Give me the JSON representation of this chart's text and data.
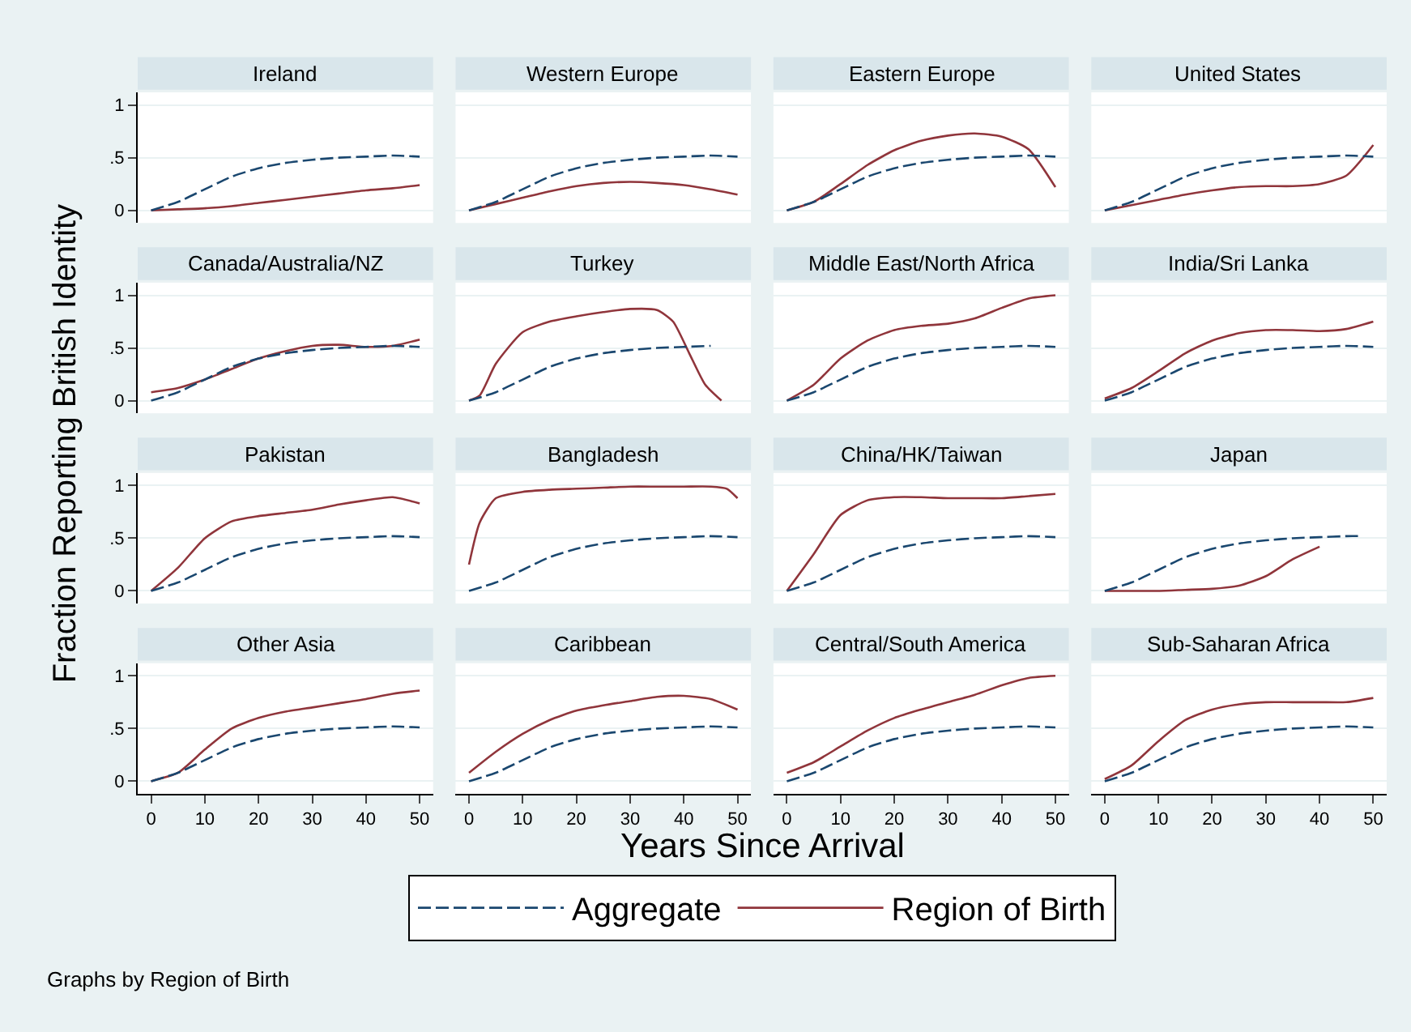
{
  "chart_data": [
    {
      "type": "line",
      "title": "Ireland",
      "xlim": [
        -2.5,
        52.5
      ],
      "xticks": [
        0,
        10,
        20,
        30,
        40,
        50
      ],
      "ylim": [
        -0.12,
        1.12
      ],
      "yticks": [
        {
          "value": 0,
          "label": "0"
        },
        {
          "value": 0.5,
          "label": ".5"
        },
        {
          "value": 1,
          "label": "1"
        }
      ],
      "grid": "y",
      "tick_labels": "y",
      "legend": "bottom",
      "ylabel": "Fraction Reporting British Identity",
      "series": [
        {
          "name": "Aggregate",
          "color": "#1a476f",
          "line_style": "dashed",
          "x": [
            0,
            5,
            10,
            15,
            20,
            25,
            30,
            35,
            40,
            45,
            50
          ],
          "values": [
            0,
            0.08,
            0.2,
            0.32,
            0.4,
            0.45,
            0.48,
            0.5,
            0.51,
            0.52,
            0.51
          ]
        },
        {
          "name": "Region of Birth",
          "color": "#90353b",
          "line_style": "solid",
          "x": [
            0,
            5,
            10,
            15,
            20,
            25,
            30,
            35,
            40,
            45,
            50
          ],
          "values": [
            0,
            0.01,
            0.02,
            0.04,
            0.07,
            0.1,
            0.13,
            0.16,
            0.19,
            0.21,
            0.24
          ]
        }
      ]
    },
    {
      "type": "line",
      "title": "Western Europe",
      "xlim": [
        -2.5,
        52.5
      ],
      "xticks": [
        0,
        10,
        20,
        30,
        40,
        50
      ],
      "ylim": [
        -0.12,
        1.12
      ],
      "yticks": [
        {
          "value": 0,
          "label": null
        },
        {
          "value": 0.5,
          "label": null
        },
        {
          "value": 1,
          "label": null
        }
      ],
      "grid": "y",
      "tick_labels": false,
      "series": [
        {
          "color": "#1a476f",
          "line_style": "dashed",
          "x": [
            0,
            5,
            10,
            15,
            20,
            25,
            30,
            35,
            40,
            45,
            50
          ],
          "values": [
            0,
            0.08,
            0.2,
            0.32,
            0.4,
            0.45,
            0.48,
            0.5,
            0.51,
            0.52,
            0.51
          ]
        },
        {
          "color": "#90353b",
          "line_style": "solid",
          "x": [
            0,
            5,
            10,
            15,
            20,
            25,
            30,
            35,
            40,
            45,
            50
          ],
          "values": [
            0,
            0.06,
            0.12,
            0.18,
            0.23,
            0.26,
            0.27,
            0.26,
            0.24,
            0.2,
            0.15
          ]
        }
      ]
    },
    {
      "type": "line",
      "title": "Eastern Europe",
      "xlim": [
        -2.5,
        52.5
      ],
      "xticks": [
        0,
        10,
        20,
        30,
        40,
        50
      ],
      "ylim": [
        -0.12,
        1.12
      ],
      "yticks": [
        {
          "value": 0,
          "label": null
        },
        {
          "value": 0.5,
          "label": null
        },
        {
          "value": 1,
          "label": null
        }
      ],
      "grid": "y",
      "tick_labels": false,
      "series": [
        {
          "color": "#1a476f",
          "line_style": "dashed",
          "x": [
            0,
            5,
            10,
            15,
            20,
            25,
            30,
            35,
            40,
            45,
            50
          ],
          "values": [
            0,
            0.08,
            0.2,
            0.32,
            0.4,
            0.45,
            0.48,
            0.5,
            0.51,
            0.52,
            0.51
          ]
        },
        {
          "color": "#90353b",
          "line_style": "solid",
          "x": [
            0,
            5,
            10,
            15,
            20,
            25,
            30,
            35,
            40,
            45,
            50
          ],
          "values": [
            0,
            0.08,
            0.25,
            0.43,
            0.57,
            0.66,
            0.71,
            0.73,
            0.7,
            0.58,
            0.22
          ]
        }
      ]
    },
    {
      "type": "line",
      "title": "United States",
      "xlim": [
        -2.5,
        52.5
      ],
      "xticks": [
        0,
        10,
        20,
        30,
        40,
        50
      ],
      "ylim": [
        -0.12,
        1.12
      ],
      "yticks": [
        {
          "value": 0,
          "label": null
        },
        {
          "value": 0.5,
          "label": null
        },
        {
          "value": 1,
          "label": null
        }
      ],
      "grid": "y",
      "tick_labels": false,
      "series": [
        {
          "color": "#1a476f",
          "line_style": "dashed",
          "x": [
            0,
            5,
            10,
            15,
            20,
            25,
            30,
            35,
            40,
            45,
            50
          ],
          "values": [
            0,
            0.08,
            0.2,
            0.32,
            0.4,
            0.45,
            0.48,
            0.5,
            0.51,
            0.52,
            0.51
          ]
        },
        {
          "color": "#90353b",
          "line_style": "solid",
          "x": [
            0,
            5,
            10,
            15,
            20,
            25,
            30,
            35,
            40,
            45,
            50
          ],
          "values": [
            0,
            0.05,
            0.1,
            0.15,
            0.19,
            0.22,
            0.23,
            0.23,
            0.25,
            0.33,
            0.62
          ]
        }
      ]
    },
    {
      "type": "line",
      "title": "Canada/Australia/NZ",
      "xlim": [
        -2.5,
        52.5
      ],
      "xticks": [
        0,
        10,
        20,
        30,
        40,
        50
      ],
      "ylim": [
        -0.12,
        1.12
      ],
      "yticks": [
        {
          "value": 0,
          "label": "0"
        },
        {
          "value": 0.5,
          "label": ".5"
        },
        {
          "value": 1,
          "label": "1"
        }
      ],
      "grid": "y",
      "tick_labels": "y",
      "series": [
        {
          "color": "#1a476f",
          "line_style": "dashed",
          "x": [
            0,
            5,
            10,
            15,
            20,
            25,
            30,
            35,
            40,
            45,
            50
          ],
          "values": [
            0,
            0.08,
            0.2,
            0.32,
            0.4,
            0.45,
            0.48,
            0.5,
            0.51,
            0.52,
            0.51
          ]
        },
        {
          "color": "#90353b",
          "line_style": "solid",
          "x": [
            0,
            5,
            10,
            15,
            20,
            25,
            30,
            35,
            40,
            45,
            50
          ],
          "values": [
            0.08,
            0.12,
            0.2,
            0.3,
            0.4,
            0.47,
            0.52,
            0.53,
            0.51,
            0.52,
            0.58
          ]
        }
      ]
    },
    {
      "type": "line",
      "title": "Turkey",
      "xlim": [
        -2.5,
        52.5
      ],
      "xticks": [
        0,
        10,
        20,
        30,
        40,
        50
      ],
      "ylim": [
        -0.12,
        1.12
      ],
      "yticks": [
        {
          "value": 0,
          "label": null
        },
        {
          "value": 0.5,
          "label": null
        },
        {
          "value": 1,
          "label": null
        }
      ],
      "grid": "y",
      "tick_labels": false,
      "series": [
        {
          "color": "#1a476f",
          "line_style": "dashed",
          "x": [
            0,
            5,
            10,
            15,
            20,
            25,
            30,
            35,
            40,
            45
          ],
          "values": [
            0,
            0.08,
            0.2,
            0.32,
            0.4,
            0.45,
            0.48,
            0.5,
            0.51,
            0.52
          ]
        },
        {
          "color": "#90353b",
          "line_style": "solid",
          "x": [
            0,
            2,
            5,
            10,
            15,
            20,
            25,
            30,
            35,
            38,
            41,
            44,
            47
          ],
          "values": [
            0,
            0.05,
            0.35,
            0.65,
            0.75,
            0.8,
            0.84,
            0.87,
            0.86,
            0.75,
            0.45,
            0.15,
            0
          ]
        }
      ]
    },
    {
      "type": "line",
      "title": "Middle East/North Africa",
      "xlim": [
        -2.5,
        52.5
      ],
      "xticks": [
        0,
        10,
        20,
        30,
        40,
        50
      ],
      "ylim": [
        -0.12,
        1.12
      ],
      "yticks": [
        {
          "value": 0,
          "label": null
        },
        {
          "value": 0.5,
          "label": null
        },
        {
          "value": 1,
          "label": null
        }
      ],
      "grid": "y",
      "tick_labels": false,
      "series": [
        {
          "color": "#1a476f",
          "line_style": "dashed",
          "x": [
            0,
            5,
            10,
            15,
            20,
            25,
            30,
            35,
            40,
            45,
            50
          ],
          "values": [
            0,
            0.08,
            0.2,
            0.32,
            0.4,
            0.45,
            0.48,
            0.5,
            0.51,
            0.52,
            0.51
          ]
        },
        {
          "color": "#90353b",
          "line_style": "solid",
          "x": [
            0,
            5,
            10,
            15,
            20,
            25,
            30,
            35,
            40,
            45,
            50
          ],
          "values": [
            0,
            0.15,
            0.4,
            0.57,
            0.67,
            0.71,
            0.73,
            0.78,
            0.88,
            0.97,
            1.0
          ]
        }
      ]
    },
    {
      "type": "line",
      "title": "India/Sri Lanka",
      "xlim": [
        -2.5,
        52.5
      ],
      "xticks": [
        0,
        10,
        20,
        30,
        40,
        50
      ],
      "ylim": [
        -0.12,
        1.12
      ],
      "yticks": [
        {
          "value": 0,
          "label": null
        },
        {
          "value": 0.5,
          "label": null
        },
        {
          "value": 1,
          "label": null
        }
      ],
      "grid": "y",
      "tick_labels": false,
      "series": [
        {
          "color": "#1a476f",
          "line_style": "dashed",
          "x": [
            0,
            5,
            10,
            15,
            20,
            25,
            30,
            35,
            40,
            45,
            50
          ],
          "values": [
            0,
            0.08,
            0.2,
            0.32,
            0.4,
            0.45,
            0.48,
            0.5,
            0.51,
            0.52,
            0.51
          ]
        },
        {
          "color": "#90353b",
          "line_style": "solid",
          "x": [
            0,
            5,
            10,
            15,
            20,
            25,
            30,
            35,
            40,
            45,
            50
          ],
          "values": [
            0.02,
            0.12,
            0.28,
            0.45,
            0.57,
            0.64,
            0.67,
            0.67,
            0.66,
            0.68,
            0.75
          ]
        }
      ]
    },
    {
      "type": "line",
      "title": "Pakistan",
      "xlim": [
        -2.5,
        52.5
      ],
      "xticks": [
        0,
        10,
        20,
        30,
        40,
        50
      ],
      "ylim": [
        -0.12,
        1.12
      ],
      "yticks": [
        {
          "value": 0,
          "label": "0"
        },
        {
          "value": 0.5,
          "label": ".5"
        },
        {
          "value": 1,
          "label": "1"
        }
      ],
      "grid": "y",
      "tick_labels": "y",
      "series": [
        {
          "color": "#1a476f",
          "line_style": "dashed",
          "x": [
            0,
            5,
            10,
            15,
            20,
            25,
            30,
            35,
            40,
            45,
            50
          ],
          "values": [
            0,
            0.08,
            0.2,
            0.32,
            0.4,
            0.45,
            0.48,
            0.5,
            0.51,
            0.52,
            0.51
          ]
        },
        {
          "color": "#90353b",
          "line_style": "solid",
          "x": [
            0,
            5,
            10,
            15,
            20,
            25,
            30,
            35,
            40,
            45,
            50
          ],
          "values": [
            0,
            0.22,
            0.5,
            0.66,
            0.71,
            0.74,
            0.77,
            0.82,
            0.86,
            0.89,
            0.83
          ]
        }
      ]
    },
    {
      "type": "line",
      "title": "Bangladesh",
      "xlim": [
        -2.5,
        52.5
      ],
      "xticks": [
        0,
        10,
        20,
        30,
        40,
        50
      ],
      "ylim": [
        -0.12,
        1.12
      ],
      "yticks": [
        {
          "value": 0,
          "label": null
        },
        {
          "value": 0.5,
          "label": null
        },
        {
          "value": 1,
          "label": null
        }
      ],
      "grid": "y",
      "tick_labels": false,
      "series": [
        {
          "color": "#1a476f",
          "line_style": "dashed",
          "x": [
            0,
            5,
            10,
            15,
            20,
            25,
            30,
            35,
            40,
            45,
            50
          ],
          "values": [
            0,
            0.08,
            0.2,
            0.32,
            0.4,
            0.45,
            0.48,
            0.5,
            0.51,
            0.52,
            0.51
          ]
        },
        {
          "color": "#90353b",
          "line_style": "solid",
          "x": [
            0,
            2,
            5,
            10,
            15,
            20,
            25,
            30,
            35,
            40,
            45,
            48,
            50
          ],
          "values": [
            0.25,
            0.65,
            0.88,
            0.94,
            0.96,
            0.97,
            0.98,
            0.99,
            0.99,
            0.99,
            0.99,
            0.97,
            0.88
          ]
        }
      ]
    },
    {
      "type": "line",
      "title": "China/HK/Taiwan",
      "xlim": [
        -2.5,
        52.5
      ],
      "xticks": [
        0,
        10,
        20,
        30,
        40,
        50
      ],
      "ylim": [
        -0.12,
        1.12
      ],
      "yticks": [
        {
          "value": 0,
          "label": null
        },
        {
          "value": 0.5,
          "label": null
        },
        {
          "value": 1,
          "label": null
        }
      ],
      "grid": "y",
      "tick_labels": false,
      "series": [
        {
          "color": "#1a476f",
          "line_style": "dashed",
          "x": [
            0,
            5,
            10,
            15,
            20,
            25,
            30,
            35,
            40,
            45,
            50
          ],
          "values": [
            0,
            0.08,
            0.2,
            0.32,
            0.4,
            0.45,
            0.48,
            0.5,
            0.51,
            0.52,
            0.51
          ]
        },
        {
          "color": "#90353b",
          "line_style": "solid",
          "x": [
            0,
            5,
            10,
            15,
            20,
            25,
            30,
            35,
            40,
            45,
            50
          ],
          "values": [
            0,
            0.35,
            0.72,
            0.86,
            0.89,
            0.89,
            0.88,
            0.88,
            0.88,
            0.9,
            0.92
          ]
        }
      ]
    },
    {
      "type": "line",
      "title": "Japan",
      "xlim": [
        -2.5,
        52.5
      ],
      "xticks": [
        0,
        10,
        20,
        30,
        40,
        50
      ],
      "ylim": [
        -0.12,
        1.12
      ],
      "yticks": [
        {
          "value": 0,
          "label": null
        },
        {
          "value": 0.5,
          "label": null
        },
        {
          "value": 1,
          "label": null
        }
      ],
      "grid": "y",
      "tick_labels": false,
      "series": [
        {
          "color": "#1a476f",
          "line_style": "dashed",
          "x": [
            0,
            5,
            10,
            15,
            20,
            25,
            30,
            35,
            40,
            45,
            48
          ],
          "values": [
            0,
            0.08,
            0.2,
            0.32,
            0.4,
            0.45,
            0.48,
            0.5,
            0.51,
            0.52,
            0.52
          ]
        },
        {
          "color": "#90353b",
          "line_style": "solid",
          "x": [
            0,
            5,
            10,
            15,
            20,
            25,
            30,
            35,
            40
          ],
          "values": [
            0,
            0,
            0,
            0.01,
            0.02,
            0.05,
            0.14,
            0.3,
            0.42
          ]
        }
      ]
    },
    {
      "type": "line",
      "title": "Other Asia",
      "xlim": [
        -2.5,
        52.5
      ],
      "xticks": [
        0,
        10,
        20,
        30,
        40,
        50
      ],
      "ylim": [
        -0.12,
        1.12
      ],
      "yticks": [
        {
          "value": 0,
          "label": "0"
        },
        {
          "value": 0.5,
          "label": ".5"
        },
        {
          "value": 1,
          "label": "1"
        }
      ],
      "grid": "y",
      "xlabel": "Years Since Arrival",
      "series": [
        {
          "color": "#1a476f",
          "line_style": "dashed",
          "x": [
            0,
            5,
            10,
            15,
            20,
            25,
            30,
            35,
            40,
            45,
            50
          ],
          "values": [
            0,
            0.08,
            0.2,
            0.32,
            0.4,
            0.45,
            0.48,
            0.5,
            0.51,
            0.52,
            0.51
          ]
        },
        {
          "color": "#90353b",
          "line_style": "solid",
          "x": [
            0,
            5,
            10,
            15,
            20,
            25,
            30,
            35,
            40,
            45,
            50
          ],
          "values": [
            0,
            0.08,
            0.3,
            0.5,
            0.6,
            0.66,
            0.7,
            0.74,
            0.78,
            0.83,
            0.86
          ]
        }
      ]
    },
    {
      "type": "line",
      "title": "Caribbean",
      "xlim": [
        -2.5,
        52.5
      ],
      "xticks": [
        0,
        10,
        20,
        30,
        40,
        50
      ],
      "ylim": [
        -0.12,
        1.12
      ],
      "yticks": [
        {
          "value": 0,
          "label": null
        },
        {
          "value": 0.5,
          "label": null
        },
        {
          "value": 1,
          "label": null
        }
      ],
      "grid": "y",
      "tick_labels": "x",
      "series": [
        {
          "color": "#1a476f",
          "line_style": "dashed",
          "x": [
            0,
            5,
            10,
            15,
            20,
            25,
            30,
            35,
            40,
            45,
            50
          ],
          "values": [
            0,
            0.08,
            0.2,
            0.32,
            0.4,
            0.45,
            0.48,
            0.5,
            0.51,
            0.52,
            0.51
          ]
        },
        {
          "color": "#90353b",
          "line_style": "solid",
          "x": [
            0,
            5,
            10,
            15,
            20,
            25,
            30,
            35,
            40,
            45,
            50
          ],
          "values": [
            0.08,
            0.28,
            0.45,
            0.58,
            0.67,
            0.72,
            0.76,
            0.8,
            0.81,
            0.78,
            0.68
          ]
        }
      ]
    },
    {
      "type": "line",
      "title": "Central/South America",
      "xlim": [
        -2.5,
        52.5
      ],
      "xticks": [
        0,
        10,
        20,
        30,
        40,
        50
      ],
      "ylim": [
        -0.12,
        1.12
      ],
      "yticks": [
        {
          "value": 0,
          "label": null
        },
        {
          "value": 0.5,
          "label": null
        },
        {
          "value": 1,
          "label": null
        }
      ],
      "grid": "y",
      "tick_labels": "x",
      "series": [
        {
          "color": "#1a476f",
          "line_style": "dashed",
          "x": [
            0,
            5,
            10,
            15,
            20,
            25,
            30,
            35,
            40,
            45,
            50
          ],
          "values": [
            0,
            0.08,
            0.2,
            0.32,
            0.4,
            0.45,
            0.48,
            0.5,
            0.51,
            0.52,
            0.51
          ]
        },
        {
          "color": "#90353b",
          "line_style": "solid",
          "x": [
            0,
            5,
            10,
            15,
            20,
            25,
            30,
            35,
            40,
            45,
            50
          ],
          "values": [
            0.08,
            0.18,
            0.33,
            0.48,
            0.6,
            0.68,
            0.75,
            0.82,
            0.91,
            0.98,
            1.0
          ]
        }
      ]
    },
    {
      "type": "line",
      "title": "Sub-Saharan Africa",
      "xlim": [
        -2.5,
        52.5
      ],
      "xticks": [
        0,
        10,
        20,
        30,
        40,
        50
      ],
      "ylim": [
        -0.12,
        1.12
      ],
      "yticks": [
        {
          "value": 0,
          "label": null
        },
        {
          "value": 0.5,
          "label": null
        },
        {
          "value": 1,
          "label": null
        }
      ],
      "grid": "y",
      "tick_labels": "x",
      "annotations": [
        "Graphs by Region of Birth"
      ],
      "series": [
        {
          "color": "#1a476f",
          "line_style": "dashed",
          "x": [
            0,
            5,
            10,
            15,
            20,
            25,
            30,
            35,
            40,
            45,
            50
          ],
          "values": [
            0,
            0.08,
            0.2,
            0.32,
            0.4,
            0.45,
            0.48,
            0.5,
            0.51,
            0.52,
            0.51
          ]
        },
        {
          "color": "#90353b",
          "line_style": "solid",
          "x": [
            0,
            5,
            10,
            15,
            20,
            25,
            30,
            35,
            40,
            45,
            50
          ],
          "values": [
            0.02,
            0.15,
            0.38,
            0.58,
            0.68,
            0.73,
            0.75,
            0.75,
            0.75,
            0.75,
            0.79
          ]
        }
      ]
    }
  ]
}
